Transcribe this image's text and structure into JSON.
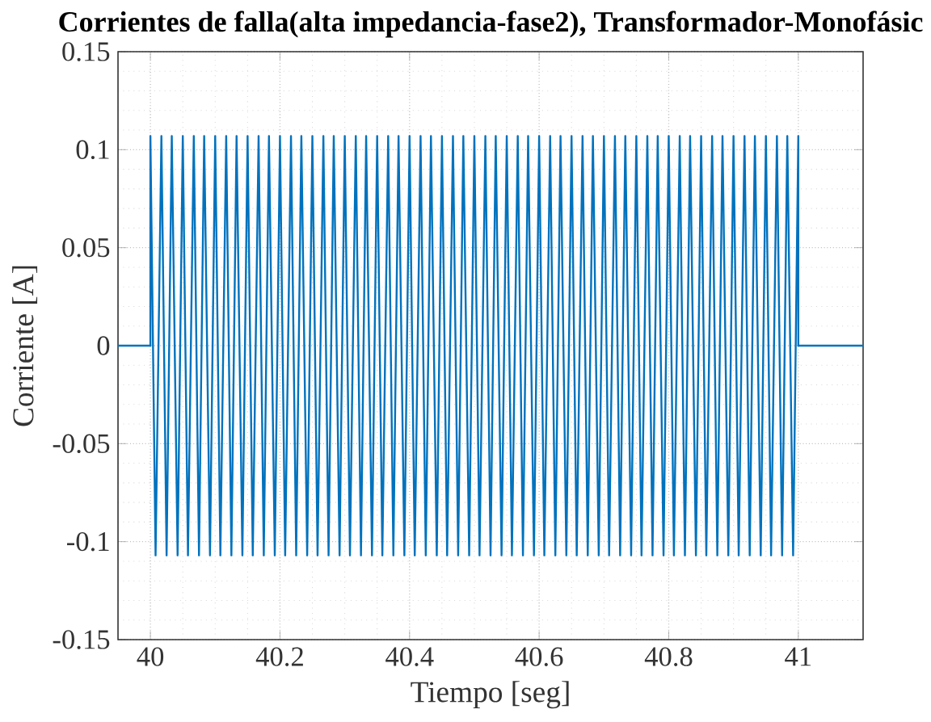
{
  "chart_data": {
    "type": "line",
    "title": "Corrientes de falla(alta impedancia-fase2), Transformador-Monofásic",
    "xlabel": "Tiempo [seg]",
    "ylabel": "Corriente [A]",
    "xlim": [
      39.95,
      41.1
    ],
    "ylim": [
      -0.15,
      0.15
    ],
    "xticks": [
      40,
      40.2,
      40.4,
      40.6,
      40.8,
      41
    ],
    "yticks": [
      -0.15,
      -0.1,
      -0.05,
      0,
      0.05,
      0.1,
      0.15
    ],
    "grid": true,
    "series": [
      {
        "color": "#0072bd",
        "x": [
          39.95,
          40,
          40,
          40.008,
          40.017,
          40.025,
          40.033,
          40.042,
          40.05,
          40.058,
          40.067,
          40.075,
          40.083,
          40.092,
          40.1,
          40.108,
          40.117,
          40.125,
          40.133,
          40.142,
          40.15,
          40.158,
          40.167,
          40.175,
          40.183,
          40.192,
          40.2,
          40.208,
          40.217,
          40.225,
          40.233,
          40.242,
          40.25,
          40.258,
          40.267,
          40.275,
          40.283,
          40.292,
          40.3,
          40.308,
          40.317,
          40.325,
          40.333,
          40.342,
          40.35,
          40.358,
          40.367,
          40.375,
          40.383,
          40.392,
          40.4,
          40.408,
          40.417,
          40.425,
          40.433,
          40.442,
          40.45,
          40.458,
          40.467,
          40.475,
          40.483,
          40.492,
          40.5,
          40.508,
          40.517,
          40.525,
          40.533,
          40.542,
          40.55,
          40.558,
          40.567,
          40.575,
          40.583,
          40.592,
          40.6,
          40.608,
          40.617,
          40.625,
          40.633,
          40.642,
          40.65,
          40.658,
          40.667,
          40.675,
          40.683,
          40.692,
          40.7,
          40.708,
          40.717,
          40.725,
          40.733,
          40.742,
          40.75,
          40.758,
          40.767,
          40.775,
          40.783,
          40.792,
          40.8,
          40.808,
          40.817,
          40.825,
          40.833,
          40.842,
          40.85,
          40.858,
          40.867,
          40.875,
          40.883,
          40.892,
          40.9,
          40.908,
          40.917,
          40.925,
          40.933,
          40.942,
          40.95,
          40.958,
          40.967,
          40.975,
          40.983,
          40.992,
          41,
          41,
          41.1
        ],
        "values": [
          0,
          0,
          0.107,
          -0.107,
          0.107,
          -0.107,
          0.107,
          -0.107,
          0.107,
          -0.107,
          0.107,
          -0.107,
          0.107,
          -0.107,
          0.107,
          -0.107,
          0.107,
          -0.107,
          0.107,
          -0.107,
          0.107,
          -0.107,
          0.107,
          -0.107,
          0.107,
          -0.107,
          0.107,
          -0.107,
          0.107,
          -0.107,
          0.107,
          -0.107,
          0.107,
          -0.107,
          0.107,
          -0.107,
          0.107,
          -0.107,
          0.107,
          -0.107,
          0.107,
          -0.107,
          0.107,
          -0.107,
          0.107,
          -0.107,
          0.107,
          -0.107,
          0.107,
          -0.107,
          0.107,
          -0.107,
          0.107,
          -0.107,
          0.107,
          -0.107,
          0.107,
          -0.107,
          0.107,
          -0.107,
          0.107,
          -0.107,
          0.107,
          -0.107,
          0.107,
          -0.107,
          0.107,
          -0.107,
          0.107,
          -0.107,
          0.107,
          -0.107,
          0.107,
          -0.107,
          0.107,
          -0.107,
          0.107,
          -0.107,
          0.107,
          -0.107,
          0.107,
          -0.107,
          0.107,
          -0.107,
          0.107,
          -0.107,
          0.107,
          -0.107,
          0.107,
          -0.107,
          0.107,
          -0.107,
          0.107,
          -0.107,
          0.107,
          -0.107,
          0.107,
          -0.107,
          0.107,
          -0.107,
          0.107,
          -0.107,
          0.107,
          -0.107,
          0.107,
          -0.107,
          0.107,
          -0.107,
          0.107,
          -0.107,
          0.107,
          -0.107,
          0.107,
          -0.107,
          0.107,
          -0.107,
          0.107,
          -0.107,
          0.107,
          -0.107,
          0.107,
          -0.107,
          0.107,
          0,
          0
        ]
      }
    ]
  }
}
